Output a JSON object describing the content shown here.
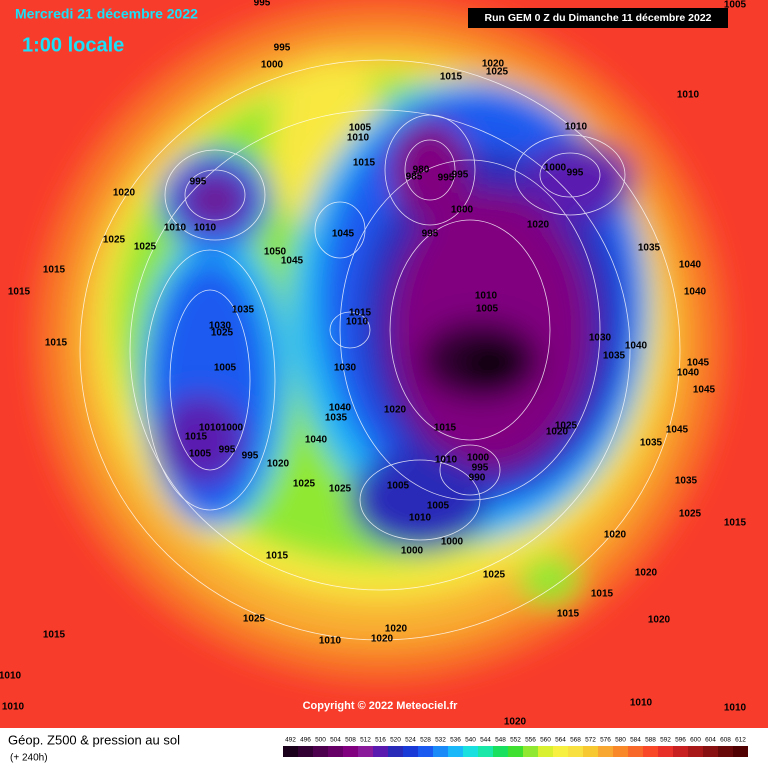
{
  "header": {
    "date": "Mercredi 21 décembre 2022",
    "time": "1:00 locale",
    "run": "Run GEM 0 Z du Dimanche 11 décembre 2022",
    "copyright": "Copyright © 2022 Meteociel.fr"
  },
  "footer": {
    "title": "Géop. Z500 & pression au sol",
    "lead": "(+ 240h)"
  },
  "colorbar": {
    "levels": [
      492,
      496,
      500,
      504,
      508,
      512,
      516,
      520,
      524,
      528,
      532,
      536,
      540,
      544,
      548,
      552,
      556,
      560,
      564,
      568,
      572,
      576,
      580,
      584,
      588,
      592,
      596,
      600,
      604,
      608,
      612
    ],
    "colors": [
      "#1a001a",
      "#330033",
      "#4d004d",
      "#660066",
      "#800080",
      "#8a1a9a",
      "#5a1ab0",
      "#2a2ab8",
      "#1a3ad8",
      "#1a5af0",
      "#1a8af8",
      "#1ab8f8",
      "#1ae0e0",
      "#1ae8a8",
      "#1ae060",
      "#40e030",
      "#90e830",
      "#d8f030",
      "#f8f040",
      "#f8e040",
      "#f8c830",
      "#f8a830",
      "#f88828",
      "#f86828",
      "#f84828",
      "#e83028",
      "#c82020",
      "#a81818",
      "#881010",
      "#680808",
      "#500000"
    ]
  },
  "isobar_labels": [
    995,
    995,
    1000,
    1020,
    1025,
    1015,
    1010,
    1005,
    1005,
    1010,
    1010,
    1015,
    980,
    985,
    995,
    995,
    1000,
    995,
    995,
    1020,
    1000,
    1020,
    1010,
    1010,
    1045,
    995,
    1025,
    1025,
    1035,
    1050,
    1045,
    1040,
    1015,
    1040,
    1015,
    1010,
    1005,
    1035,
    1015,
    1010,
    1030,
    1025,
    1030,
    1015,
    1040,
    1035,
    1005,
    1030,
    1045,
    1040,
    1045,
    1040,
    1020,
    1035,
    1010,
    1000,
    1015,
    1025,
    1020,
    1015,
    1040,
    1035,
    1045,
    1005,
    995,
    995,
    1010,
    1000,
    995,
    990,
    1020,
    1025,
    1025,
    1005,
    1035,
    1005,
    1010,
    1025,
    1015,
    1020,
    1000,
    1000,
    1015,
    1025,
    1020,
    1015,
    1015,
    1025,
    1020,
    1015,
    1020,
    1010,
    1020,
    1010,
    1010,
    1010,
    1010,
    1020
  ]
}
